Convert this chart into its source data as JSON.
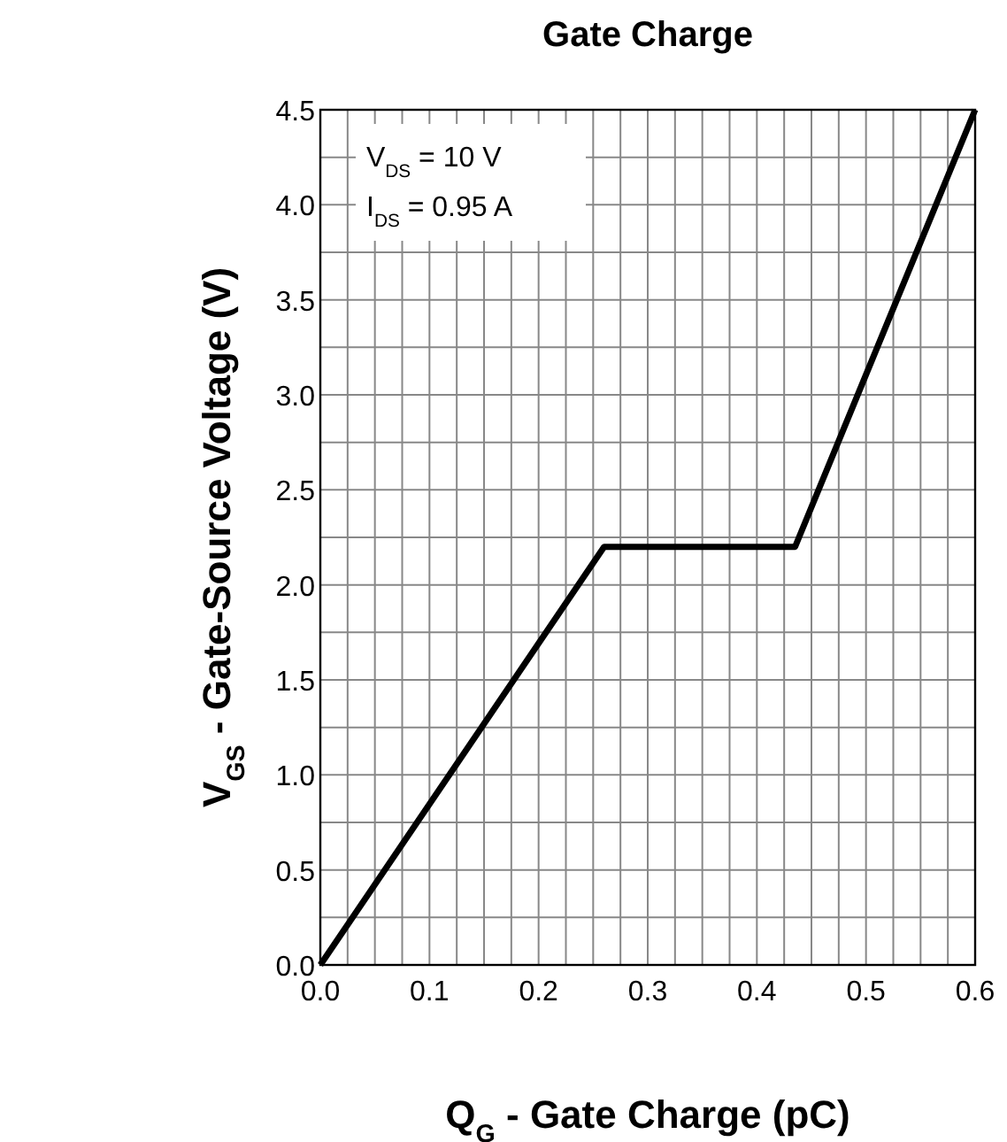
{
  "chart_data": {
    "type": "line",
    "title": "Gate Charge",
    "xlabel": "Q$_{G}$ - Gate Charge (pC)",
    "ylabel": "V$_{GS}$ - Gate-Source Voltage (V)",
    "annotations": [
      "V$_{DS}$ = 10 V",
      "I$_{DS}$ = 0.95 A"
    ],
    "x": [
      0,
      0.26,
      0.435,
      0.6
    ],
    "series": [
      {
        "color": "#000000",
        "values": [
          0,
          2.2,
          2.2,
          4.5
        ]
      }
    ],
    "xlim": [
      0,
      0.6
    ],
    "ylim": [
      0,
      4.5
    ],
    "xticks": [
      {
        "value": 0,
        "label": "0.0"
      },
      {
        "value": 0.025,
        "label": null
      },
      {
        "value": 0.05,
        "label": null
      },
      {
        "value": 0.075,
        "label": null
      },
      {
        "value": 0.1,
        "label": "0.1"
      },
      {
        "value": 0.125,
        "label": null
      },
      {
        "value": 0.15,
        "label": null
      },
      {
        "value": 0.175,
        "label": null
      },
      {
        "value": 0.2,
        "label": "0.2"
      },
      {
        "value": 0.225,
        "label": null
      },
      {
        "value": 0.25,
        "label": null
      },
      {
        "value": 0.275,
        "label": null
      },
      {
        "value": 0.3,
        "label": "0.3"
      },
      {
        "value": 0.325,
        "label": null
      },
      {
        "value": 0.35,
        "label": null
      },
      {
        "value": 0.375,
        "label": null
      },
      {
        "value": 0.4,
        "label": "0.4"
      },
      {
        "value": 0.425,
        "label": null
      },
      {
        "value": 0.45,
        "label": null
      },
      {
        "value": 0.475,
        "label": null
      },
      {
        "value": 0.5,
        "label": "0.5"
      },
      {
        "value": 0.525,
        "label": null
      },
      {
        "value": 0.55,
        "label": null
      },
      {
        "value": 0.575,
        "label": null
      },
      {
        "value": 0.6,
        "label": "0.6"
      }
    ],
    "yticks": [
      {
        "value": 0,
        "label": "0.0"
      },
      {
        "value": 0.25,
        "label": null
      },
      {
        "value": 0.5,
        "label": "0.5"
      },
      {
        "value": 0.75,
        "label": null
      },
      {
        "value": 1,
        "label": "1.0"
      },
      {
        "value": 1.25,
        "label": null
      },
      {
        "value": 1.5,
        "label": "1.5"
      },
      {
        "value": 1.75,
        "label": null
      },
      {
        "value": 2,
        "label": "2.0"
      },
      {
        "value": 2.25,
        "label": null
      },
      {
        "value": 2.5,
        "label": "2.5"
      },
      {
        "value": 2.75,
        "label": null
      },
      {
        "value": 3,
        "label": "3.0"
      },
      {
        "value": 3.25,
        "label": null
      },
      {
        "value": 3.5,
        "label": "3.5"
      },
      {
        "value": 3.75,
        "label": null
      },
      {
        "value": 4,
        "label": "4.0"
      },
      {
        "value": 4.25,
        "label": null
      },
      {
        "value": 4.5,
        "label": "4.5"
      }
    ],
    "grid": true,
    "line_style": "solid",
    "marker": "none"
  }
}
